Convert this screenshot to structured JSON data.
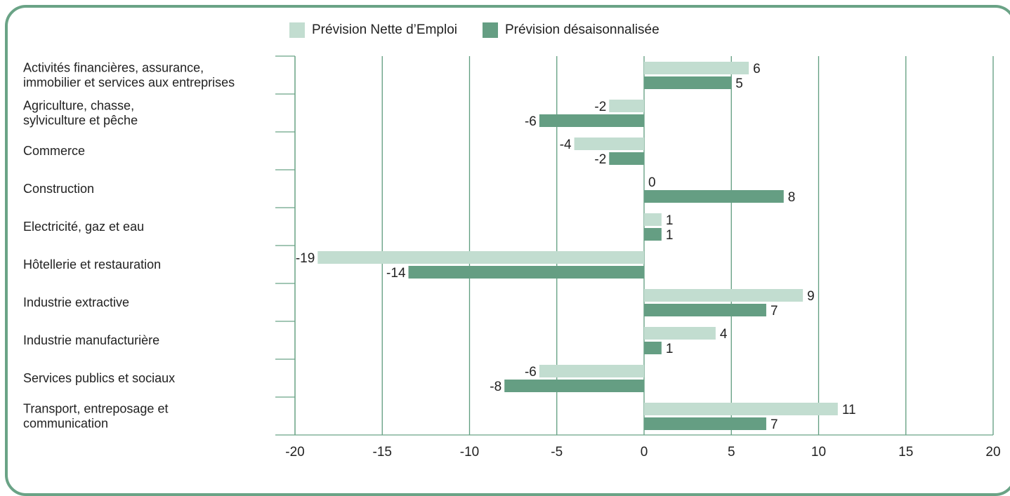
{
  "chart_data": {
    "type": "bar",
    "orientation": "horizontal",
    "categories": [
      [
        "Activités financières, assurance,",
        "immobilier et services aux entreprises"
      ],
      [
        "Agriculture, chasse,",
        "sylviculture et pêche"
      ],
      [
        "Commerce"
      ],
      [
        "Construction"
      ],
      [
        "Electricité, gaz et eau"
      ],
      [
        "Hôtellerie et restauration"
      ],
      [
        "Industrie extractive"
      ],
      [
        "Industrie manufacturière"
      ],
      [
        "Services publics et sociaux"
      ],
      [
        "Transport, entreposage et",
        "communication"
      ]
    ],
    "series": [
      {
        "name": "Prévision Nette d’Emploi",
        "color": "#c2ddd0",
        "values": [
          6,
          -2,
          -4,
          0,
          1,
          -19,
          9,
          4,
          -6,
          11
        ],
        "bar_values": [
          6,
          -2,
          -4,
          0,
          1,
          -18.7,
          9.1,
          4.1,
          -6,
          11.1
        ]
      },
      {
        "name": "Prévision désaisonnalisée",
        "color": "#659e83",
        "values": [
          5,
          -6,
          -2,
          8,
          1,
          -14,
          7,
          1,
          -8,
          7
        ],
        "bar_values": [
          5,
          -6,
          -2,
          8,
          1,
          -13.5,
          7,
          1,
          -8,
          7
        ]
      }
    ],
    "xlim": [
      -20,
      20
    ],
    "xticks": [
      -20,
      -15,
      -10,
      -5,
      0,
      5,
      10,
      15,
      20
    ],
    "title": "",
    "xlabel": "",
    "ylabel": "",
    "grid": "vertical",
    "legend": "top"
  },
  "colors": {
    "frame": "#6aa386",
    "grid": "#5f9c7e",
    "axis": "#6aa386"
  }
}
